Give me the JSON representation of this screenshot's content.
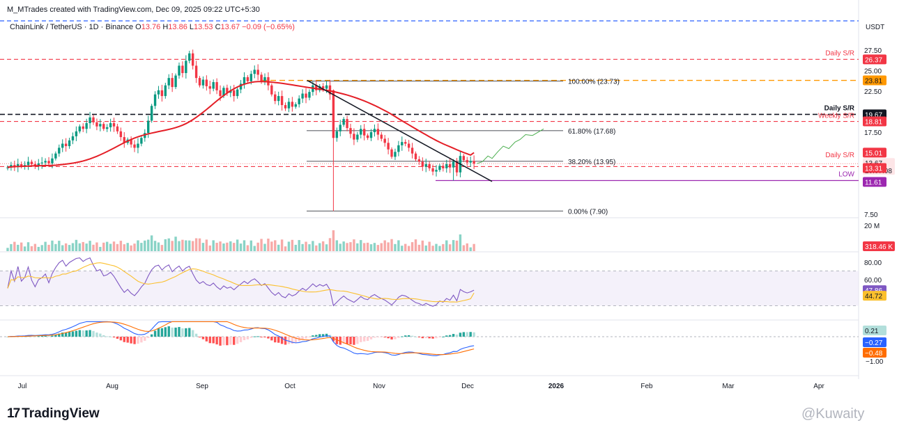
{
  "header": {
    "credit": "M_MTrades created with TradingView.com, Dec 09, 2025 09:22 UTC+5:30",
    "symbol": "ChainLink / TetherUS · 1D · Binance",
    "ohlc": {
      "o_label": "O",
      "o": "13.76",
      "h_label": "H",
      "h": "13.86",
      "l_label": "L",
      "l": "13.53",
      "c_label": "C",
      "c": "13.67",
      "change": "−0.09 (−0.65%)"
    },
    "currency": "USDT"
  },
  "footer": {
    "logo_mark": "17",
    "logo_text": "TradingView",
    "watermark": "@Kuwaity"
  },
  "colors": {
    "up": "#089981",
    "down": "#f23645",
    "ma": "#e41e26",
    "rsi": "#7e57c2",
    "rsi_ma": "#fbc02d",
    "macd": "#2962ff",
    "signal": "#ff6d00",
    "fib": "#131722",
    "low_line": "#9c27b0",
    "gold": "#ff9800",
    "projection": "#4caf50"
  },
  "chart_data": {
    "type": "candlestick",
    "symbol": "ChainLink / TetherUS",
    "timeframe": "1D",
    "exchange": "Binance",
    "price_axis_ticks": [
      "27.50",
      "25.00",
      "22.50",
      "17.50",
      "7.50"
    ],
    "price_range": [
      7.0,
      29.0
    ],
    "time_axis": [
      "Jul",
      "Aug",
      "Sep",
      "Oct",
      "Nov",
      "Dec",
      "2026",
      "Feb",
      "Mar",
      "Apr"
    ],
    "closes": [
      13.2,
      13.5,
      13.3,
      13.6,
      13.4,
      13.5,
      13.9,
      13.6,
      13.4,
      13.7,
      13.8,
      14.0,
      13.7,
      14.3,
      14.9,
      15.6,
      16.1,
      15.8,
      16.5,
      17.0,
      17.6,
      18.2,
      17.9,
      18.6,
      19.3,
      18.7,
      18.2,
      18.5,
      17.9,
      18.1,
      18.6,
      18.2,
      17.6,
      16.9,
      16.2,
      16.6,
      16.0,
      15.6,
      16.1,
      16.8,
      17.4,
      18.9,
      20.7,
      22.1,
      22.6,
      21.9,
      23.2,
      24.1,
      23.0,
      24.4,
      25.6,
      24.7,
      26.2,
      27.1,
      25.6,
      24.1,
      23.2,
      23.9,
      23.1,
      22.8,
      23.6,
      22.6,
      21.9,
      22.9,
      22.3,
      22.6,
      21.9,
      22.7,
      23.4,
      24.2,
      23.7,
      24.6,
      25.1,
      24.5,
      23.7,
      24.2,
      23.2,
      22.1,
      21.3,
      21.9,
      20.8,
      20.4,
      21.2,
      20.6,
      20.9,
      21.6,
      22.2,
      21.7,
      22.4,
      23.2,
      22.6,
      23.1,
      22.8,
      23.2,
      22.1,
      16.8,
      17.6,
      18.4,
      19.1,
      18.0,
      17.3,
      16.6,
      17.2,
      17.9,
      17.1,
      16.8,
      17.5,
      17.9,
      17.2,
      16.7,
      16.2,
      15.4,
      14.5,
      15.1,
      15.9,
      16.3,
      16.1,
      15.6,
      14.9,
      14.2,
      13.9,
      13.3,
      13.6,
      13.1,
      12.7,
      12.9,
      13.4,
      13.1,
      13.6,
      13.2,
      13.9,
      12.6,
      14.6,
      14.1,
      13.8,
      14.0,
      13.67
    ],
    "ma_end_value": 15.01,
    "current_price": 13.67,
    "countdown": "20:07:08",
    "levels": [
      {
        "label": "Daily S/R",
        "price": 26.37,
        "tag": "26.37"
      },
      {
        "label": "",
        "price": 23.81,
        "tag": "23.81"
      },
      {
        "label": "Daily S/R",
        "price": 19.67,
        "tag": "19.67"
      },
      {
        "label": "Weekly S/R",
        "price": 18.81,
        "tag": "18.81"
      },
      {
        "label": "Daily S/R",
        "price": 13.31,
        "tag": "13.31"
      },
      {
        "label": "LOW",
        "price": 11.61,
        "tag": "11.61"
      }
    ],
    "ma_tag": "15.01",
    "fib": [
      {
        "label": "100.00% (23.73)",
        "price": 23.73
      },
      {
        "label": "61.80% (17.68)",
        "price": 17.68
      },
      {
        "label": "38.20% (13.95)",
        "price": 13.95
      },
      {
        "label": "0.00% (7.90)",
        "price": 7.9
      }
    ],
    "trendline": {
      "from_price": 23.8,
      "to_price": 11.5
    },
    "volume": {
      "axis_label": "20 M",
      "last": "318.46 K"
    },
    "rsi": {
      "ticks": [
        "80.00",
        "60.00"
      ],
      "value": "47.86",
      "ma_value": "44.72",
      "upper": 70,
      "lower": 30
    },
    "macd": {
      "ticks": [
        "−1.00"
      ],
      "hist": "0.21",
      "macd": "−0.27",
      "signal": "−0.48"
    }
  }
}
